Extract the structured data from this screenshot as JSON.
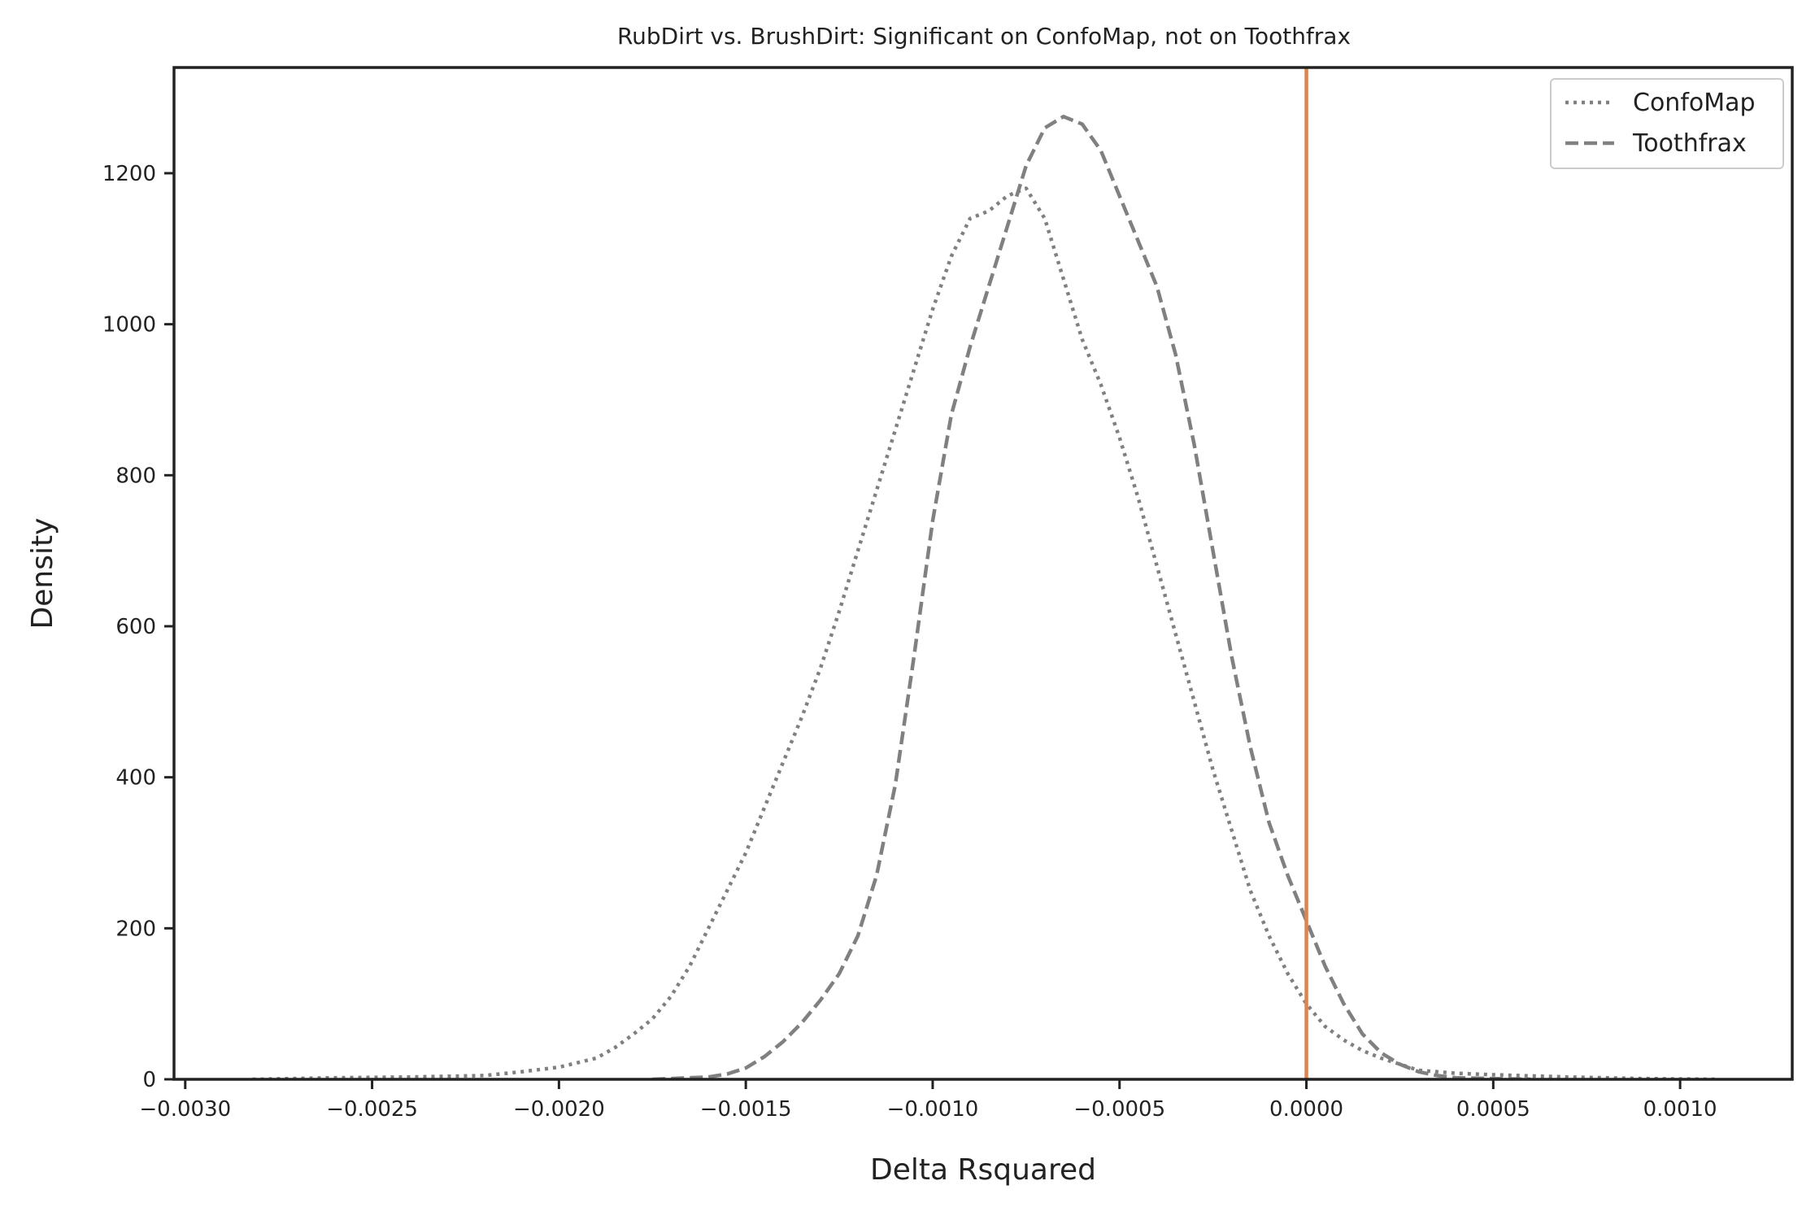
{
  "chart_data": {
    "type": "line",
    "title": "RubDirt vs. BrushDirt: Significant on ConfoMap, not on Toothfrax",
    "xlabel": "Delta Rsquared",
    "ylabel": "Density",
    "xlim": [
      -0.00303,
      0.0013
    ],
    "ylim": [
      0,
      1340
    ],
    "grid": false,
    "legend_position": "top-right",
    "x_ticks": [
      -0.003,
      -0.0025,
      -0.002,
      -0.0015,
      -0.001,
      -0.0005,
      0.0,
      0.0005,
      0.001
    ],
    "x_tick_labels": [
      "−0.0030",
      "−0.0025",
      "−0.0020",
      "−0.0015",
      "−0.0010",
      "−0.0005",
      "0.0000",
      "0.0005",
      "0.0010"
    ],
    "y_ticks": [
      0,
      200,
      400,
      600,
      800,
      1000,
      1200
    ],
    "y_tick_labels": [
      "0",
      "200",
      "400",
      "600",
      "800",
      "1000",
      "1200"
    ],
    "reference_line": {
      "x": 0.0,
      "color": "#dd8452"
    },
    "series": [
      {
        "name": "ConfoMap",
        "style": "dotted",
        "color": "#808080",
        "points": [
          [
            -0.00282,
            0
          ],
          [
            -0.0026,
            2
          ],
          [
            -0.0024,
            3
          ],
          [
            -0.0022,
            5
          ],
          [
            -0.0021,
            10
          ],
          [
            -0.002,
            16
          ],
          [
            -0.0019,
            28
          ],
          [
            -0.00185,
            42
          ],
          [
            -0.0018,
            60
          ],
          [
            -0.00175,
            80
          ],
          [
            -0.0017,
            110
          ],
          [
            -0.00165,
            150
          ],
          [
            -0.0016,
            200
          ],
          [
            -0.00155,
            250
          ],
          [
            -0.0015,
            300
          ],
          [
            -0.00145,
            360
          ],
          [
            -0.0014,
            420
          ],
          [
            -0.00135,
            480
          ],
          [
            -0.0013,
            545
          ],
          [
            -0.00125,
            620
          ],
          [
            -0.0012,
            700
          ],
          [
            -0.00115,
            780
          ],
          [
            -0.0011,
            860
          ],
          [
            -0.00105,
            940
          ],
          [
            -0.001,
            1020
          ],
          [
            -0.00095,
            1090
          ],
          [
            -0.0009,
            1140
          ],
          [
            -0.00085,
            1150
          ],
          [
            -0.0008,
            1170
          ],
          [
            -0.00075,
            1180
          ],
          [
            -0.0007,
            1140
          ],
          [
            -0.00065,
            1060
          ],
          [
            -0.0006,
            980
          ],
          [
            -0.00055,
            920
          ],
          [
            -0.0005,
            850
          ],
          [
            -0.00045,
            770
          ],
          [
            -0.0004,
            680
          ],
          [
            -0.00035,
            590
          ],
          [
            -0.0003,
            500
          ],
          [
            -0.00025,
            410
          ],
          [
            -0.0002,
            330
          ],
          [
            -0.00015,
            250
          ],
          [
            -0.0001,
            190
          ],
          [
            -5e-05,
            140
          ],
          [
            0.0,
            100
          ],
          [
            5e-05,
            70
          ],
          [
            0.0001,
            52
          ],
          [
            0.00015,
            38
          ],
          [
            0.0002,
            28
          ],
          [
            0.00025,
            20
          ],
          [
            0.0003,
            12
          ],
          [
            0.0004,
            8
          ],
          [
            0.0005,
            6
          ],
          [
            0.0007,
            3
          ],
          [
            0.0009,
            1
          ],
          [
            0.0011,
            0
          ]
        ]
      },
      {
        "name": "Toothfrax",
        "style": "dashed",
        "color": "#808080",
        "points": [
          [
            -0.00175,
            0
          ],
          [
            -0.0016,
            3
          ],
          [
            -0.00155,
            7
          ],
          [
            -0.0015,
            15
          ],
          [
            -0.00145,
            30
          ],
          [
            -0.0014,
            50
          ],
          [
            -0.00135,
            75
          ],
          [
            -0.0013,
            105
          ],
          [
            -0.00125,
            140
          ],
          [
            -0.0012,
            190
          ],
          [
            -0.00115,
            270
          ],
          [
            -0.0011,
            390
          ],
          [
            -0.00105,
            560
          ],
          [
            -0.001,
            740
          ],
          [
            -0.00095,
            880
          ],
          [
            -0.0009,
            970
          ],
          [
            -0.00085,
            1050
          ],
          [
            -0.0008,
            1130
          ],
          [
            -0.00075,
            1210
          ],
          [
            -0.0007,
            1260
          ],
          [
            -0.00065,
            1275
          ],
          [
            -0.0006,
            1265
          ],
          [
            -0.00055,
            1230
          ],
          [
            -0.0005,
            1170
          ],
          [
            -0.00045,
            1110
          ],
          [
            -0.0004,
            1050
          ],
          [
            -0.00035,
            960
          ],
          [
            -0.0003,
            840
          ],
          [
            -0.00025,
            700
          ],
          [
            -0.0002,
            560
          ],
          [
            -0.00015,
            440
          ],
          [
            -0.0001,
            340
          ],
          [
            -5e-05,
            270
          ],
          [
            0.0,
            210
          ],
          [
            5e-05,
            150
          ],
          [
            0.0001,
            100
          ],
          [
            0.00015,
            60
          ],
          [
            0.0002,
            35
          ],
          [
            0.00025,
            20
          ],
          [
            0.0003,
            10
          ],
          [
            0.00035,
            5
          ],
          [
            0.0004,
            2
          ],
          [
            0.0005,
            1
          ],
          [
            0.0006,
            0
          ]
        ]
      }
    ]
  },
  "colors": {
    "axes": "#222222",
    "series": "#808080",
    "reference_line": "#dd8452",
    "background": "#ffffff"
  }
}
